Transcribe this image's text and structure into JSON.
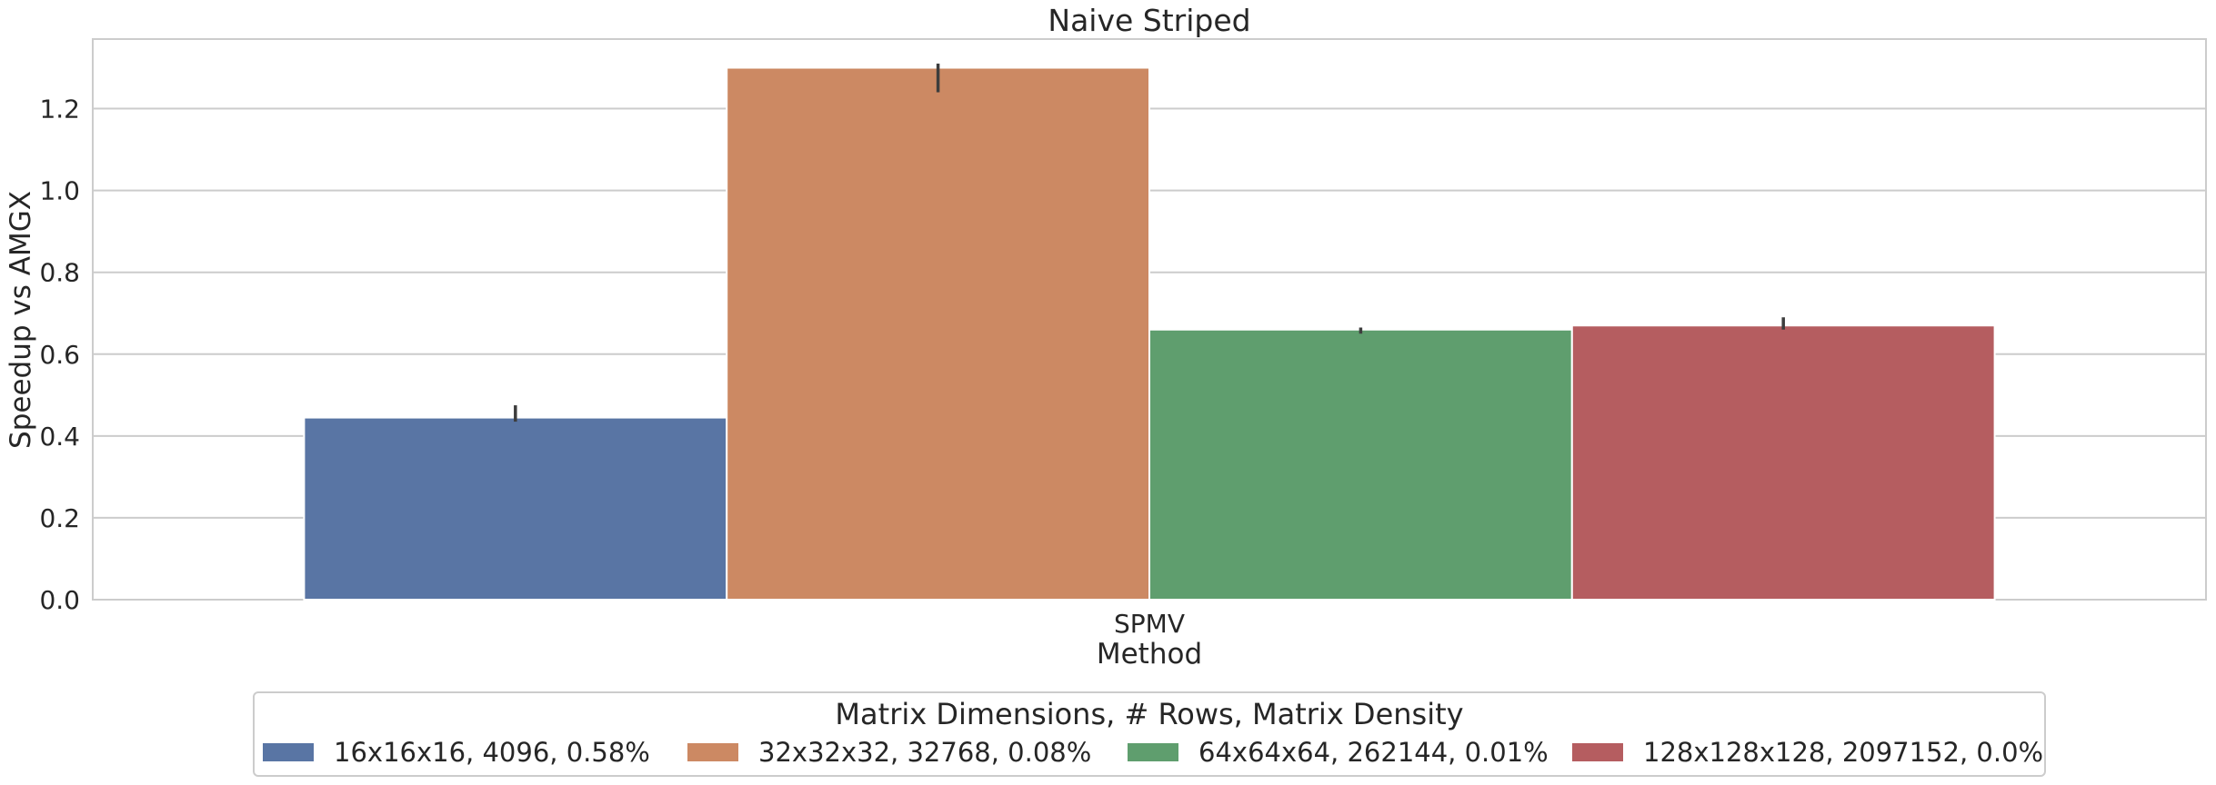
{
  "chart_data": {
    "type": "bar",
    "title": "Naive Striped",
    "xlabel": "Method",
    "ylabel": "Speedup vs AMGX",
    "categories": [
      "SPMV"
    ],
    "ylim": [
      0,
      1.37
    ],
    "yticks": [
      0.0,
      0.2,
      0.4,
      0.6,
      0.8,
      1.0,
      1.2
    ],
    "grid": true,
    "legend": {
      "title": "Matrix Dimensions, # Rows, Matrix Density",
      "placement": "bottom-center"
    },
    "series": [
      {
        "name": "16x16x16, 4096, 0.58%",
        "values": [
          0.445
        ],
        "err_low": [
          0.435
        ],
        "err_high": [
          0.475
        ],
        "color": "#5975a4"
      },
      {
        "name": "32x32x32, 32768, 0.08%",
        "values": [
          1.3
        ],
        "err_low": [
          1.24
        ],
        "err_high": [
          1.31
        ],
        "color": "#cc8963"
      },
      {
        "name": "64x64x64, 262144, 0.01%",
        "values": [
          0.66
        ],
        "err_low": [
          0.65
        ],
        "err_high": [
          0.665
        ],
        "color": "#5f9e6e"
      },
      {
        "name": "128x128x128, 2097152, 0.0%",
        "values": [
          0.67
        ],
        "err_low": [
          0.66
        ],
        "err_high": [
          0.69
        ],
        "color": "#b55d60"
      }
    ]
  }
}
